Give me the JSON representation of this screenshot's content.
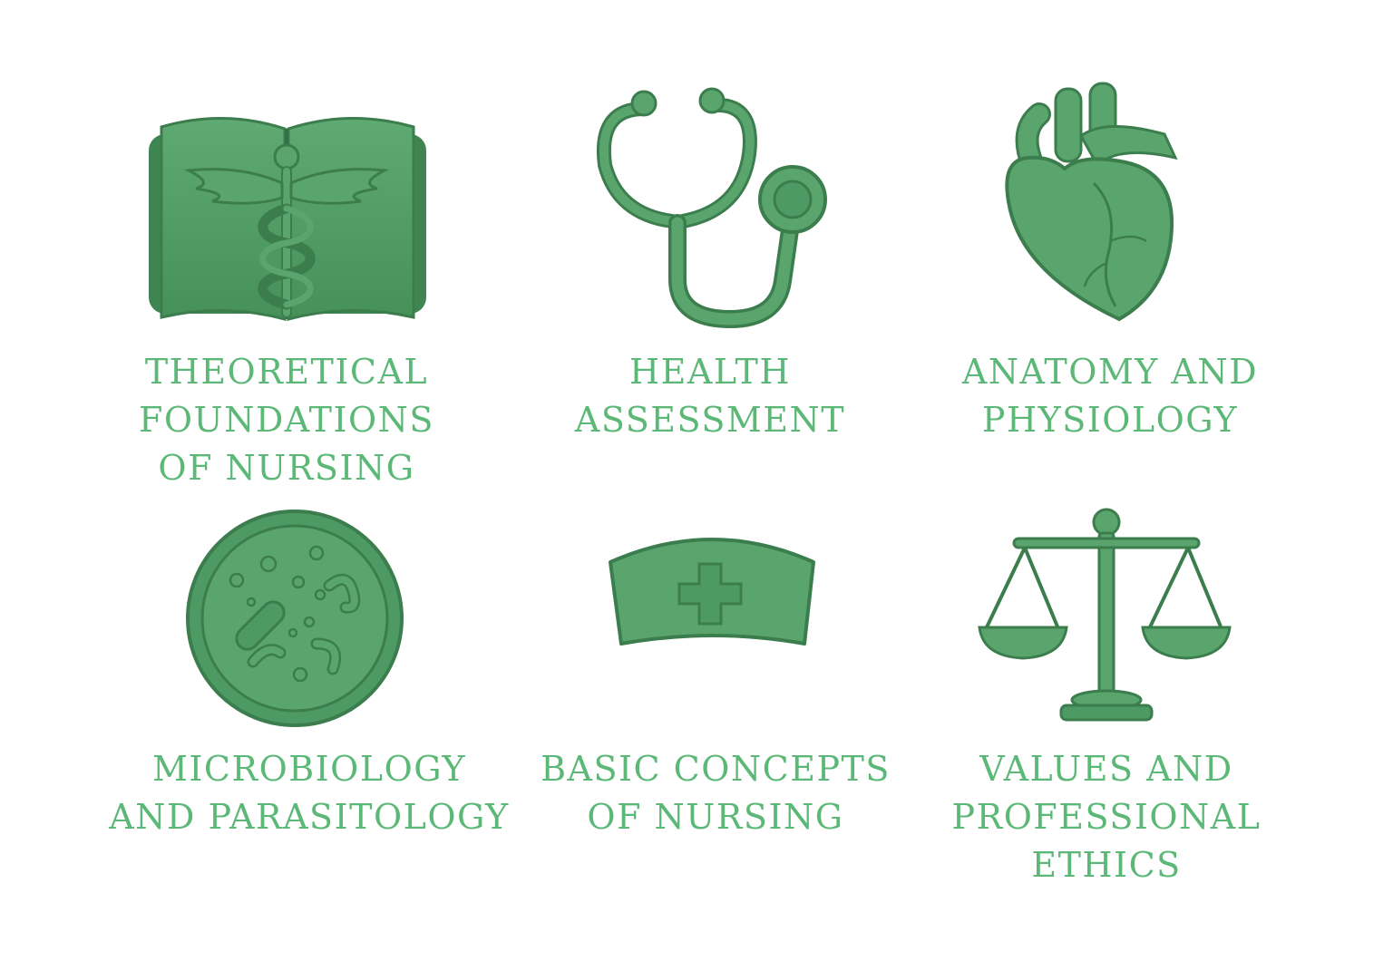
{
  "colors": {
    "icon_green": "#4e9a64",
    "icon_dark": "#3c7d4e",
    "icon_light": "#73bb86",
    "text_green": "#5cb877"
  },
  "topics": [
    {
      "icon": "open-book-caduceus-icon",
      "label_lines": [
        "THEORETICAL",
        "FOUNDATIONS",
        "OF NURSING"
      ]
    },
    {
      "icon": "stethoscope-icon",
      "label_lines": [
        "HEALTH",
        "ASSESSMENT"
      ]
    },
    {
      "icon": "anatomical-heart-icon",
      "label_lines": [
        "ANATOMY AND",
        "PHYSIOLOGY"
      ]
    },
    {
      "icon": "petri-dish-microbes-icon",
      "label_lines": [
        "MICROBIOLOGY",
        "AND PARASITOLOGY"
      ]
    },
    {
      "icon": "nurse-cap-icon",
      "label_lines": [
        "BASIC CONCEPTS",
        "OF NURSING"
      ]
    },
    {
      "icon": "scales-of-justice-icon",
      "label_lines": [
        "VALUES AND",
        "PROFESSIONAL",
        "ETHICS"
      ]
    }
  ]
}
